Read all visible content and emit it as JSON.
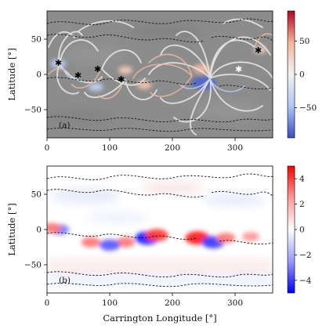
{
  "chart_data": [
    {
      "type": "heatmap",
      "panel_label": "(a)",
      "xlabel": "",
      "ylabel": "Latitude [°]",
      "xlim": [
        0,
        360
      ],
      "ylim": [
        -90,
        90
      ],
      "xticks": [
        0,
        100,
        200,
        300
      ],
      "yticks": [
        -50,
        0,
        50
      ],
      "colorbar": {
        "range": [
          -95,
          95
        ],
        "ticks": [
          -50,
          0,
          50
        ],
        "colors": [
          "#3b4cc0",
          "#aec6f4",
          "#f2f2f2",
          "#f6b69a",
          "#b40426"
        ]
      },
      "background": "#8c8c8c",
      "regions": [
        {
          "lon": 250,
          "lat": -12,
          "value": -85
        },
        {
          "lon": 247,
          "lat": 8,
          "value": 45
        },
        {
          "lon": 18,
          "lat": 15,
          "value": -40
        },
        {
          "lon": 125,
          "lat": 6,
          "value": 30
        },
        {
          "lon": 155,
          "lat": -15,
          "value": 35
        },
        {
          "lon": 78,
          "lat": -18,
          "value": -35
        },
        {
          "lon": 340,
          "lat": 35,
          "value": 20
        }
      ]
    },
    {
      "type": "heatmap",
      "panel_label": "(b)",
      "xlabel": "Carrington Longitude [°]",
      "ylabel": "Latitude [°]",
      "xlim": [
        0,
        360
      ],
      "ylim": [
        -90,
        90
      ],
      "xticks": [
        0,
        100,
        200,
        300
      ],
      "yticks": [
        -50,
        0,
        50
      ],
      "colorbar": {
        "range": [
          -5,
          5
        ],
        "ticks": [
          -4,
          -2,
          0,
          2,
          4
        ],
        "colors": [
          "#0000ff",
          "#9999ff",
          "#ffffff",
          "#ff9999",
          "#ff0000"
        ]
      },
      "background": "#ffffff",
      "regions": [
        {
          "lon": 240,
          "lat": -12,
          "value": 4.5
        },
        {
          "lon": 265,
          "lat": -18,
          "value": -4
        },
        {
          "lon": 285,
          "lat": -12,
          "value": 3
        },
        {
          "lon": 160,
          "lat": -12,
          "value": -4.5
        },
        {
          "lon": 175,
          "lat": -8,
          "value": 4
        },
        {
          "lon": 125,
          "lat": -18,
          "value": 3
        },
        {
          "lon": 100,
          "lat": -22,
          "value": -3.5
        },
        {
          "lon": 70,
          "lat": -18,
          "value": 3
        },
        {
          "lon": 20,
          "lat": 0,
          "value": -3
        },
        {
          "lon": 8,
          "lat": 2,
          "value": 3
        },
        {
          "lon": 325,
          "lat": -10,
          "value": 2.5
        }
      ]
    }
  ]
}
